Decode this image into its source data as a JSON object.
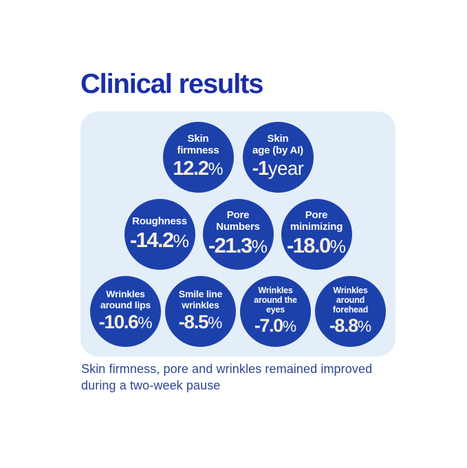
{
  "page": {
    "title": "Clinical results",
    "caption": "Skin firmness, pore and wrinkles remained improved\nduring a two-week pause"
  },
  "colors": {
    "title_text": "#1a2ea6",
    "panel_background": "#e3eef8",
    "bubble_background": "#1c41ab",
    "bubble_label_text": "#ffffff",
    "bubble_value_text": "#f7eeda",
    "bubble_unit_text": "#fbf7ec",
    "caption_text": "#2a4595"
  },
  "bubbles": {
    "rows": [
      [
        {
          "label": "Skin\nfirmness",
          "number": "12.2",
          "unit": "%"
        },
        {
          "label": "Skin\nage (by AI)",
          "number": "-1",
          "unit": "year"
        }
      ],
      [
        {
          "label": "Roughness",
          "number": "-14.2",
          "unit": "%"
        },
        {
          "label": "Pore\nNumbers",
          "number": "-21.3",
          "unit": "%"
        },
        {
          "label": "Pore\nminimizing",
          "number": "-18.0",
          "unit": "%"
        }
      ],
      [
        {
          "label": "Wrinkles\naround lips",
          "number": "-10.6",
          "unit": "%"
        },
        {
          "label": "Smile line\nwrinkles",
          "number": "-8.5",
          "unit": "%"
        },
        {
          "label": "Wrinkles\naround the\neyes",
          "number": "-7.0",
          "unit": "%"
        },
        {
          "label": "Wrinkles\naround\nforehead",
          "number": "-8.8",
          "unit": "%"
        }
      ]
    ]
  },
  "chart_data": {
    "type": "table",
    "title": "Clinical results",
    "layout": "bubble grid on light-blue rounded panel; rows of 2 / 3 / 4 circles",
    "categories": [
      "Skin firmness",
      "Skin age (by AI)",
      "Roughness",
      "Pore Numbers",
      "Pore minimizing",
      "Wrinkles around lips",
      "Smile line wrinkles",
      "Wrinkles around the eyes",
      "Wrinkles around forehead"
    ],
    "values": [
      12.2,
      -1,
      -14.2,
      -21.3,
      -18.0,
      -10.6,
      -8.5,
      -7.0,
      -8.8
    ],
    "units": [
      "%",
      "year",
      "%",
      "%",
      "%",
      "%",
      "%",
      "%",
      "%"
    ],
    "note": "Skin firmness, pore and wrinkles remained improved during a two-week pause"
  }
}
